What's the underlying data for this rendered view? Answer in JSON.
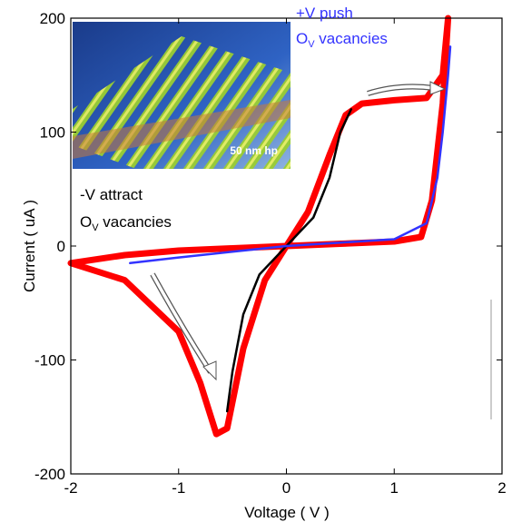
{
  "chart_data": {
    "type": "line",
    "x_label": "Voltage ( V )",
    "y_label": "Current ( uA )",
    "xlim": [
      -2,
      2
    ],
    "ylim": [
      -200,
      200
    ],
    "xticks": [
      -2,
      -1,
      0,
      1,
      2
    ],
    "yticks": [
      -200,
      -100,
      0,
      100,
      200
    ],
    "series": [
      {
        "color": "#ff0000",
        "x": [
          -2,
          -1.5,
          -1.0,
          -0.8,
          -0.65,
          -0.55,
          -0.4,
          -0.2,
          0,
          0.2,
          0.4,
          0.55,
          0.7,
          1.0,
          1.3,
          1.45,
          1.5,
          1.45,
          1.35,
          1.25,
          1.0,
          0.5,
          0,
          -0.5,
          -1.0,
          -1.5,
          -2
        ],
        "values": [
          -15,
          -30,
          -75,
          -120,
          -165,
          -160,
          -90,
          -30,
          0,
          30,
          80,
          115,
          125,
          128,
          130,
          150,
          200,
          125,
          40,
          8,
          4,
          2,
          0,
          -2,
          -4,
          -8,
          -15
        ]
      },
      {
        "color": "#000000",
        "x": [
          -0.55,
          -0.5,
          -0.4,
          -0.25,
          0,
          0.25,
          0.4,
          0.5,
          0.6
        ],
        "values": [
          -145,
          -110,
          -60,
          -25,
          0,
          25,
          60,
          100,
          120
        ]
      },
      {
        "color": "#3333ff",
        "x": [
          -1.45,
          -1,
          -0.5,
          0,
          0.5,
          1.0,
          1.3,
          1.4,
          1.45,
          1.5,
          1.52
        ],
        "values": [
          -15,
          -10,
          -5,
          0,
          3,
          6,
          20,
          60,
          100,
          150,
          175
        ]
      }
    ],
    "annotations": [
      {
        "text": "+V push",
        "color": "#3333ff"
      },
      {
        "main": "O",
        "sub": "V",
        "rest": " vacancies",
        "color": "#3333ff"
      },
      {
        "text": "-V attract",
        "color": "#000000"
      },
      {
        "main": "O",
        "sub": "V",
        "rest": " vacancies",
        "color": "#000000"
      }
    ],
    "inset_label": "50 nm hp"
  }
}
